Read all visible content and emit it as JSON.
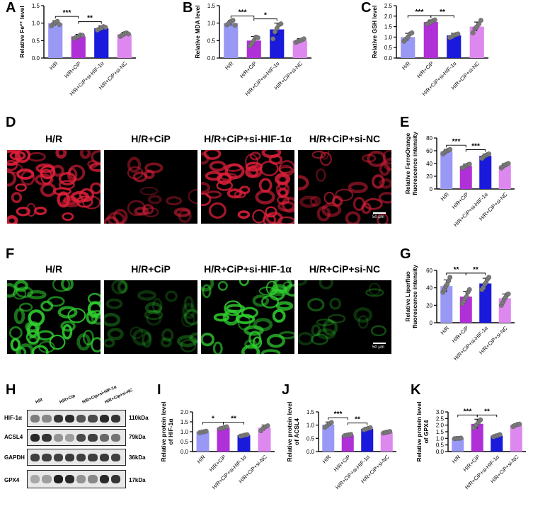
{
  "panels": {
    "A": "A",
    "B": "B",
    "C": "C",
    "D": "D",
    "E": "E",
    "F": "F",
    "G": "G",
    "H": "H",
    "I": "I",
    "J": "J",
    "K": "K"
  },
  "colors": {
    "hr": "#9999f5",
    "cip": "#b030d8",
    "si_hif": "#1a1adc",
    "si_nc": "#dd88ee",
    "dot": "#7a7a7a",
    "red_cells": "#e0203a",
    "green_cells": "#30d230"
  },
  "categories": [
    "H/R",
    "H/R+CiP",
    "H/R+CiP+si-HIF-1α",
    "H/R+CiP+si-NC"
  ],
  "chart_data": [
    {
      "panel": "A",
      "type": "bar",
      "categories": [
        "H/R",
        "H/R+CiP",
        "H/R+CiP+si-HIF-1α",
        "H/R+CiP+si-NC"
      ],
      "values": [
        1.0,
        0.62,
        0.85,
        0.68
      ],
      "errors": [
        0.07,
        0.06,
        0.07,
        0.06
      ],
      "points": [
        [
          0.92,
          0.98,
          1.02,
          1.05,
          0.96
        ],
        [
          0.56,
          0.6,
          0.62,
          0.66,
          0.65
        ],
        [
          0.8,
          0.84,
          0.86,
          0.9,
          0.88
        ],
        [
          0.62,
          0.66,
          0.7,
          0.72,
          0.69
        ]
      ],
      "ylabel": "Relative Fe²⁺ level",
      "ylim": [
        0,
        1.5
      ],
      "yticks": [
        "0.0",
        "0.5",
        "1.0",
        "1.5"
      ],
      "sig": [
        {
          "from": 0,
          "to": 1,
          "text": "***"
        },
        {
          "from": 1,
          "to": 2,
          "text": "**"
        }
      ]
    },
    {
      "panel": "B",
      "type": "bar",
      "categories": [
        "H/R",
        "H/R+CiP",
        "H/R+CiP+si-HIF-1α",
        "H/R+CiP+si-NC"
      ],
      "values": [
        1.0,
        0.5,
        0.82,
        0.5
      ],
      "errors": [
        0.08,
        0.12,
        0.18,
        0.06
      ],
      "points": [
        [
          0.95,
          1.0,
          1.05,
          1.08,
          0.94
        ],
        [
          0.35,
          0.42,
          0.5,
          0.6,
          0.58
        ],
        [
          0.55,
          0.75,
          0.85,
          0.95,
          0.98
        ],
        [
          0.45,
          0.48,
          0.5,
          0.52,
          0.55
        ]
      ],
      "ylabel": "Relative MDA level",
      "ylim": [
        0,
        1.5
      ],
      "yticks": [
        "0.0",
        "0.5",
        "1.0",
        "1.5"
      ],
      "sig": [
        {
          "from": 0,
          "to": 1,
          "text": "***"
        },
        {
          "from": 1,
          "to": 2,
          "text": "*"
        }
      ]
    },
    {
      "panel": "C",
      "type": "bar",
      "categories": [
        "H/R",
        "H/R+CiP",
        "H/R+CiP+si-HIF-1α",
        "H/R+CiP+si-NC"
      ],
      "values": [
        1.0,
        1.72,
        1.08,
        1.5
      ],
      "errors": [
        0.18,
        0.1,
        0.1,
        0.22
      ],
      "points": [
        [
          0.8,
          0.9,
          1.0,
          1.15,
          1.2
        ],
        [
          1.62,
          1.68,
          1.72,
          1.78,
          1.82
        ],
        [
          0.98,
          1.02,
          1.08,
          1.12,
          1.15
        ],
        [
          1.2,
          1.4,
          1.5,
          1.62,
          1.8
        ]
      ],
      "ylabel": "Relative GSH level",
      "ylim": [
        0,
        2.5
      ],
      "yticks": [
        "0.0",
        "0.5",
        "1.0",
        "1.5",
        "2.0",
        "2.5"
      ],
      "sig": [
        {
          "from": 0,
          "to": 1,
          "text": "***"
        },
        {
          "from": 1,
          "to": 2,
          "text": "**"
        }
      ]
    },
    {
      "panel": "E",
      "type": "bar",
      "categories": [
        "H/R",
        "H/R+CiP",
        "H/R+CiP+si-HIF-1α",
        "H/R+CiP+si-NC"
      ],
      "values": [
        59,
        36,
        52,
        37
      ],
      "errors": [
        3,
        3,
        3,
        3
      ],
      "points": [
        [
          55,
          57,
          59,
          60,
          61,
          62
        ],
        [
          33,
          34,
          36,
          37,
          38,
          39
        ],
        [
          48,
          50,
          52,
          53,
          54,
          55
        ],
        [
          33,
          35,
          37,
          38,
          39,
          40
        ]
      ],
      "ylabel": "Relative FerroOrange fluorescence intensity",
      "ylim": [
        0,
        80
      ],
      "yticks": [
        "0",
        "20",
        "40",
        "60",
        "80"
      ],
      "sig": [
        {
          "from": 0,
          "to": 1,
          "text": "***"
        },
        {
          "from": 1,
          "to": 2,
          "text": "***"
        }
      ]
    },
    {
      "panel": "G",
      "type": "bar",
      "categories": [
        "H/R",
        "H/R+CiP",
        "H/R+CiP+si-HIF-1α",
        "H/R+CiP+si-NC"
      ],
      "values": [
        42,
        30,
        45,
        28
      ],
      "errors": [
        7,
        6,
        6,
        5
      ],
      "points": [
        [
          35,
          38,
          42,
          44,
          48,
          52
        ],
        [
          22,
          25,
          28,
          30,
          35,
          38
        ],
        [
          38,
          40,
          44,
          46,
          50,
          52
        ],
        [
          20,
          23,
          27,
          29,
          32,
          33
        ]
      ],
      "ylabel": "Relative Liperfluo fluorescence intensity",
      "ylim": [
        0,
        60
      ],
      "yticks": [
        "0",
        "20",
        "40",
        "60"
      ],
      "sig": [
        {
          "from": 0,
          "to": 1,
          "text": "**"
        },
        {
          "from": 1,
          "to": 2,
          "text": "**"
        }
      ]
    },
    {
      "panel": "I",
      "type": "bar",
      "categories": [
        "H/R",
        "H/R+CiP",
        "H/R+CiP+si-HIF-1α",
        "H/R+CiP+si-NC"
      ],
      "values": [
        1.0,
        1.2,
        0.82,
        1.2
      ],
      "errors": [
        0.06,
        0.06,
        0.05,
        0.14
      ],
      "points": [
        [
          0.95,
          0.98,
          1.0,
          1.03
        ],
        [
          1.15,
          1.18,
          1.22,
          1.25
        ],
        [
          0.78,
          0.8,
          0.83,
          0.85
        ],
        [
          1.05,
          1.18,
          1.25,
          1.3
        ]
      ],
      "ylabel": "Relative protein level of HIF-1α",
      "ylim": [
        0,
        2.0
      ],
      "yticks": [
        "0.0",
        "0.5",
        "1.0",
        "1.5",
        "2.0"
      ],
      "sig": [
        {
          "from": 0,
          "to": 1,
          "text": "*"
        },
        {
          "from": 1,
          "to": 2,
          "text": "**"
        }
      ]
    },
    {
      "panel": "J",
      "type": "bar",
      "categories": [
        "H/R",
        "H/R+CiP",
        "H/R+CiP+si-HIF-1α",
        "H/R+CiP+si-NC"
      ],
      "values": [
        1.02,
        0.62,
        0.86,
        0.73
      ],
      "errors": [
        0.1,
        0.04,
        0.06,
        0.05
      ],
      "points": [
        [
          0.92,
          0.98,
          1.05,
          1.1
        ],
        [
          0.6,
          0.62,
          0.63,
          0.65
        ],
        [
          0.82,
          0.85,
          0.88,
          0.9
        ],
        [
          0.7,
          0.72,
          0.74,
          0.76
        ]
      ],
      "ylabel": "Relative protein level of ACSL4",
      "ylim": [
        0,
        1.5
      ],
      "yticks": [
        "0.0",
        "0.5",
        "1.0",
        "1.5"
      ],
      "sig": [
        {
          "from": 0,
          "to": 1,
          "text": "***"
        },
        {
          "from": 1,
          "to": 2,
          "text": "**"
        }
      ]
    },
    {
      "panel": "K",
      "type": "bar",
      "categories": [
        "H/R",
        "H/R+CiP",
        "H/R+CiP+si-HIF-1α",
        "H/R+CiP+si-NC"
      ],
      "values": [
        1.0,
        2.1,
        1.2,
        2.0
      ],
      "errors": [
        0.03,
        0.35,
        0.08,
        0.1
      ],
      "points": [
        [
          0.98,
          1.0,
          1.0,
          1.02
        ],
        [
          1.8,
          2.0,
          2.2,
          2.4
        ],
        [
          1.12,
          1.18,
          1.22,
          1.28
        ],
        [
          1.9,
          1.98,
          2.05,
          2.08
        ]
      ],
      "ylabel": "Relative protein level of GPX4",
      "ylim": [
        0,
        3.0
      ],
      "yticks": [
        "0.0",
        "0.5",
        "1.0",
        "1.5",
        "2.0",
        "2.5",
        "3.0"
      ],
      "sig": [
        {
          "from": 0,
          "to": 1,
          "text": "***"
        },
        {
          "from": 1,
          "to": 2,
          "text": "**"
        }
      ]
    }
  ],
  "micro": {
    "headers": [
      "H/R",
      "H/R+CiP",
      "H/R+CiP+si-HIF-1α",
      "H/R+CiP+si-NC"
    ],
    "scale_text": "50 μm"
  },
  "wb": {
    "lanes": [
      "H/R",
      "H/R+Cip",
      "H/R+Cip+si-HIF-1α",
      "H/R+Cip+si-NC"
    ],
    "rows": [
      {
        "name": "HIF-1α",
        "kda": "110kDa"
      },
      {
        "name": "ACSL4",
        "kda": "79kDa"
      },
      {
        "name": "GAPDH",
        "kda": "36kDa"
      },
      {
        "name": "GPX4",
        "kda": "17kDa"
      }
    ]
  }
}
